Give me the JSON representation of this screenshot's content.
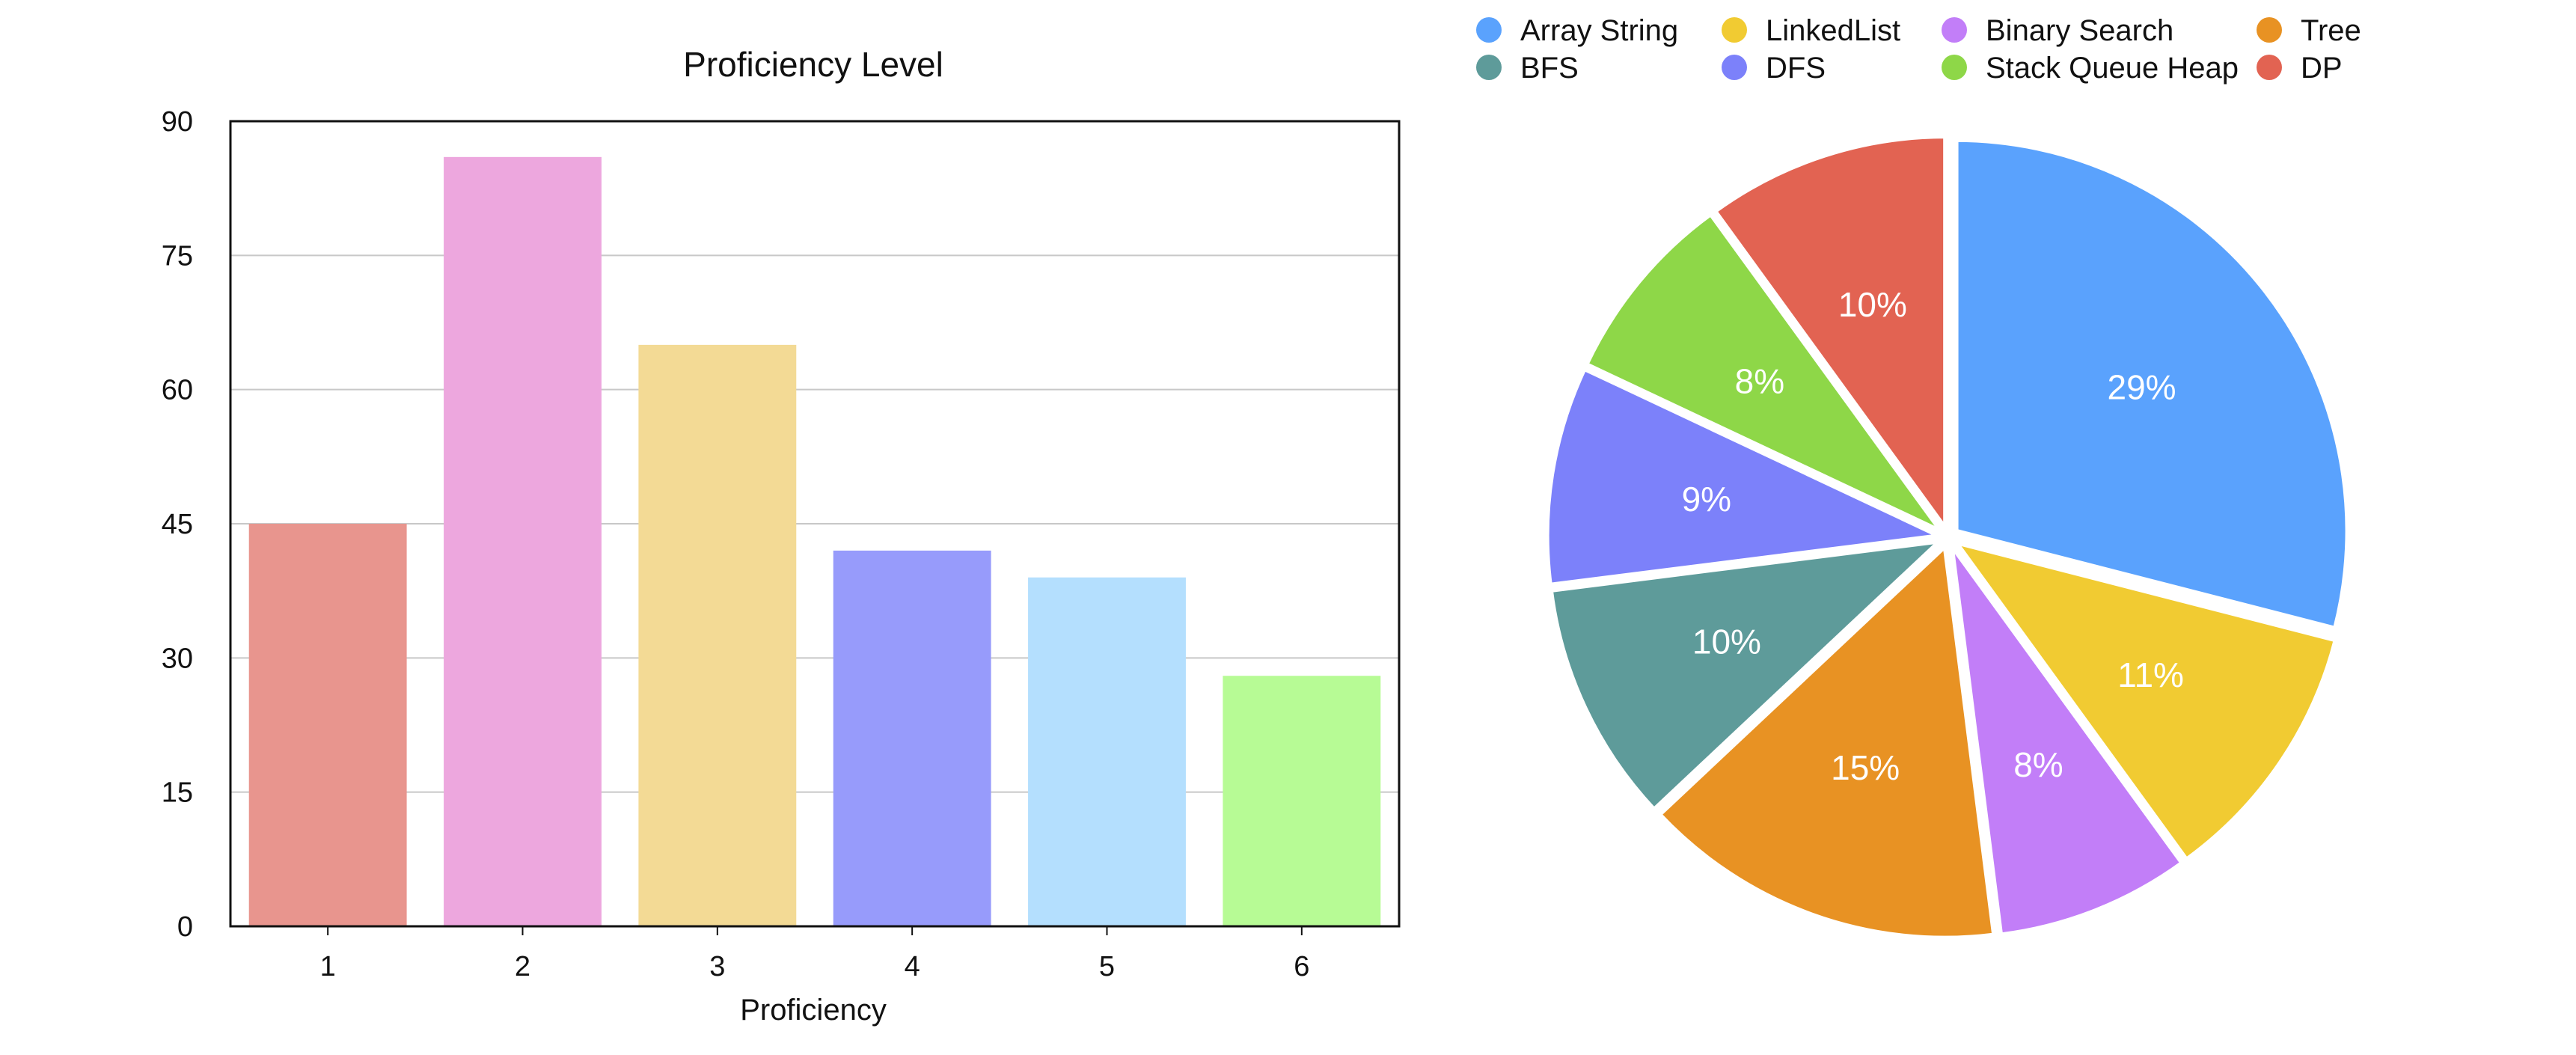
{
  "chart_data": [
    {
      "type": "bar",
      "title": "Proficiency Level",
      "xlabel": "Proficiency",
      "ylabel": "",
      "categories": [
        "1",
        "2",
        "3",
        "4",
        "5",
        "6"
      ],
      "values": [
        45,
        86,
        65,
        42,
        39,
        28
      ],
      "ylim": [
        0,
        90
      ],
      "yticks": [
        0,
        15,
        30,
        45,
        60,
        75,
        90
      ],
      "ytick_labels": [
        "0",
        "15",
        "30",
        "45",
        "60",
        "75",
        "90"
      ],
      "colors": [
        "#e8958e",
        "#eda7de",
        "#f3da95",
        "#979bfb",
        "#b4dffe",
        "#b7fb95"
      ],
      "grid": true,
      "legend": "none"
    },
    {
      "type": "pie",
      "title": "",
      "legend": "top",
      "slices": [
        {
          "label": "Array String",
          "value": 29,
          "display": "29%",
          "color": "#5aa2fd"
        },
        {
          "label": "LinkedList",
          "value": 11,
          "display": "11%",
          "color": "#f1cb32"
        },
        {
          "label": "Binary Search",
          "value": 8,
          "display": "8%",
          "color": "#c27ef8"
        },
        {
          "label": "Tree",
          "value": 15,
          "display": "15%",
          "color": "#e89223"
        },
        {
          "label": "BFS",
          "value": 10,
          "display": "10%",
          "color": "#5e9b9a"
        },
        {
          "label": "DFS",
          "value": 9,
          "display": "9%",
          "color": "#7c81fa"
        },
        {
          "label": "Stack Queue Heap",
          "value": 8,
          "display": "8%",
          "color": "#8ed748"
        },
        {
          "label": "DP",
          "value": 10,
          "display": "10%",
          "color": "#e26352"
        }
      ],
      "legend_order": [
        "Array String",
        "LinkedList",
        "Binary Search",
        "Tree",
        "BFS",
        "DFS",
        "Stack Queue Heap",
        "DP"
      ]
    }
  ]
}
